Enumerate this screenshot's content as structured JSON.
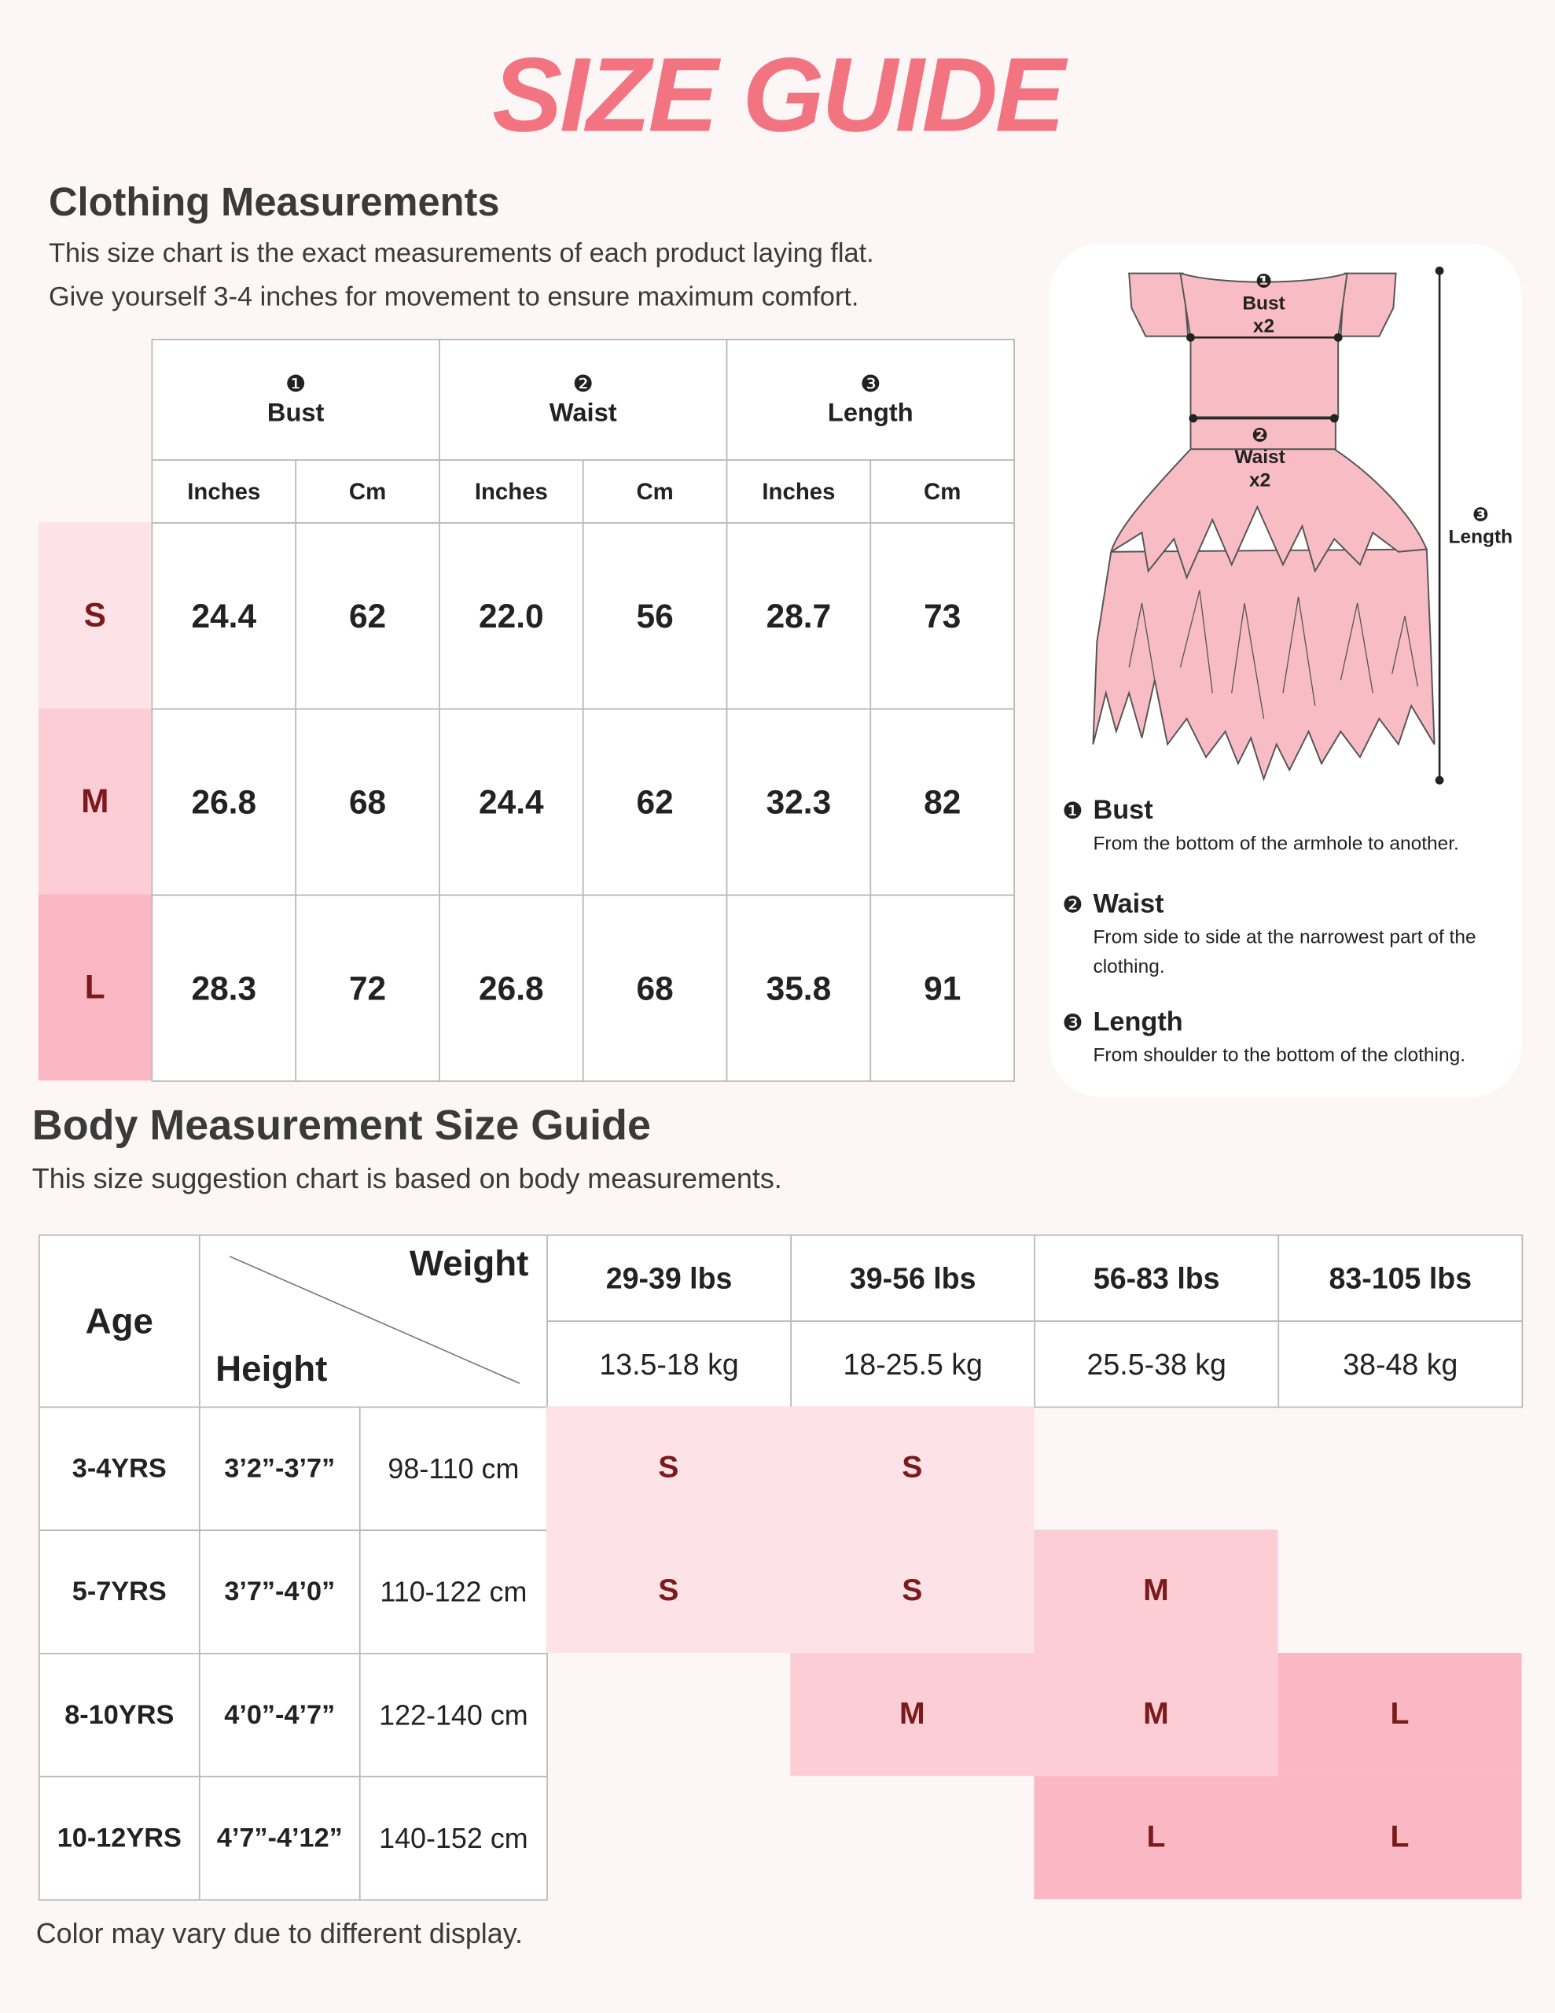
{
  "header": {
    "title": "SIZE GUIDE"
  },
  "clothing": {
    "heading": "Clothing Measurements",
    "description": [
      "This size chart is the exact measurements of each product laying flat.",
      "Give yourself 3-4 inches for movement to ensure maximum comfort."
    ],
    "groups": [
      {
        "marker": "❶",
        "label": "Bust"
      },
      {
        "marker": "❷",
        "label": "Waist"
      },
      {
        "marker": "❸",
        "label": "Length"
      }
    ],
    "units": [
      "Inches",
      "Cm",
      "Inches",
      "Cm",
      "Inches",
      "Cm"
    ],
    "rows": [
      {
        "size": "S",
        "values": [
          "24.4",
          "62",
          "22.0",
          "56",
          "28.7",
          "73"
        ]
      },
      {
        "size": "M",
        "values": [
          "26.8",
          "68",
          "24.4",
          "62",
          "32.3",
          "82"
        ]
      },
      {
        "size": "L",
        "values": [
          "28.3",
          "72",
          "26.8",
          "68",
          "35.8",
          "91"
        ]
      }
    ]
  },
  "diagram": {
    "labels": [
      {
        "marker": "❶",
        "lines": [
          "Bust",
          "x2"
        ]
      },
      {
        "marker": "❷",
        "lines": [
          "Waist",
          "x2"
        ]
      },
      {
        "marker": "❸",
        "lines": [
          "Length"
        ]
      }
    ],
    "notes": [
      {
        "marker": "❶",
        "title": "Bust",
        "text": "From the bottom of the armhole to another."
      },
      {
        "marker": "❷",
        "title": "Waist",
        "text": "From side to side at the narrowest part of the clothing."
      },
      {
        "marker": "❸",
        "title": "Length",
        "text": "From shoulder to the bottom of the clothing."
      }
    ]
  },
  "body": {
    "heading": "Body Measurement Size Guide",
    "description": "This size suggestion chart is based on body measurements.",
    "age_label": "Age",
    "corner": {
      "top": "Weight",
      "bottom": "Height"
    },
    "weights": [
      {
        "lbs": "29-39 lbs",
        "kg": "13.5-18 kg"
      },
      {
        "lbs": "39-56 lbs",
        "kg": "18-25.5 kg"
      },
      {
        "lbs": "56-83 lbs",
        "kg": "25.5-38 kg"
      },
      {
        "lbs": "83-105 lbs",
        "kg": "38-48 kg"
      }
    ],
    "rows": [
      {
        "age": "3-4YRS",
        "height_ft": "3’2”-3’7”",
        "height_cm": "98-110 cm",
        "sizes": [
          "S",
          "S",
          null,
          null
        ]
      },
      {
        "age": "5-7YRS",
        "height_ft": "3’7”-4’0”",
        "height_cm": "110-122 cm",
        "sizes": [
          "S",
          "S",
          "M",
          null
        ]
      },
      {
        "age": "8-10YRS",
        "height_ft": "4’0”-4’7”",
        "height_cm": "122-140 cm",
        "sizes": [
          null,
          "M",
          "M",
          "L"
        ]
      },
      {
        "age": "10-12YRS",
        "height_ft": "4’7”-4’12”",
        "height_cm": "140-152 cm",
        "sizes": [
          null,
          null,
          "L",
          "L"
        ]
      }
    ],
    "size_colors": {
      "S": "#fde2e7",
      "M": "#fccdd5",
      "L": "#f9b8c3"
    }
  },
  "footer": {
    "note": "Color may vary due to different display."
  }
}
